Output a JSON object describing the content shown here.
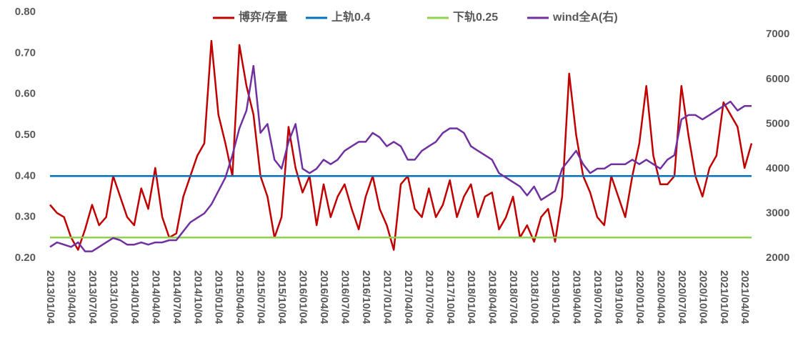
{
  "chart_data": {
    "type": "line",
    "categories": [
      "2013/01/04",
      null,
      null,
      "2013/04/04",
      null,
      null,
      "2013/07/04",
      null,
      null,
      "2013/10/04",
      null,
      null,
      "2014/01/04",
      null,
      null,
      "2014/04/04",
      null,
      null,
      "2014/07/04",
      null,
      null,
      "2014/10/04",
      null,
      null,
      "2015/01/04",
      null,
      null,
      "2015/04/04",
      null,
      null,
      "2015/07/04",
      null,
      null,
      "2015/10/04",
      null,
      null,
      "2016/01/04",
      null,
      null,
      "2016/04/04",
      null,
      null,
      "2016/07/04",
      null,
      null,
      "2016/10/04",
      null,
      null,
      "2017/01/04",
      null,
      null,
      "2017/04/04",
      null,
      null,
      "2017/07/04",
      null,
      null,
      "2017/10/04",
      null,
      null,
      "2018/01/04",
      null,
      null,
      "2018/04/04",
      null,
      null,
      "2018/07/04",
      null,
      null,
      "2018/10/04",
      null,
      null,
      "2019/01/04",
      null,
      null,
      "2019/04/04",
      null,
      null,
      "2019/07/04",
      null,
      null,
      "2019/10/04",
      null,
      null,
      "2020/01/04",
      null,
      null,
      "2020/04/04",
      null,
      null,
      "2020/07/04",
      null,
      null,
      "2020/10/04",
      null,
      null,
      "2021/01/04",
      null,
      null,
      "2021/04/04",
      null
    ],
    "series": [
      {
        "name": "博弈/存量",
        "color": "#c00000",
        "values": [
          0.33,
          0.31,
          0.3,
          0.25,
          0.22,
          0.27,
          0.33,
          0.28,
          0.3,
          0.4,
          0.35,
          0.3,
          0.28,
          0.37,
          0.32,
          0.42,
          0.3,
          0.25,
          0.26,
          0.35,
          0.4,
          0.45,
          0.48,
          0.73,
          0.55,
          0.48,
          0.4,
          0.72,
          0.62,
          0.55,
          0.4,
          0.35,
          0.25,
          0.3,
          0.52,
          0.42,
          0.36,
          0.4,
          0.28,
          0.38,
          0.3,
          0.35,
          0.38,
          0.32,
          0.27,
          0.35,
          0.4,
          0.32,
          0.28,
          0.22,
          0.38,
          0.4,
          0.32,
          0.3,
          0.37,
          0.3,
          0.33,
          0.39,
          0.3,
          0.35,
          0.38,
          0.3,
          0.35,
          0.36,
          0.27,
          0.3,
          0.35,
          0.25,
          0.28,
          0.24,
          0.3,
          0.32,
          0.24,
          0.35,
          0.65,
          0.5,
          0.4,
          0.36,
          0.3,
          0.28,
          0.4,
          0.35,
          0.3,
          0.4,
          0.48,
          0.62,
          0.45,
          0.38,
          0.38,
          0.4,
          0.62,
          0.5,
          0.4,
          0.35,
          0.42,
          0.45,
          0.58,
          0.55,
          0.52,
          0.42,
          0.48
        ]
      },
      {
        "name": "上轨0.4",
        "color": "#0070c0",
        "values": [
          0.4,
          0.4,
          0.4,
          0.4,
          0.4,
          0.4,
          0.4,
          0.4,
          0.4,
          0.4,
          0.4,
          0.4,
          0.4,
          0.4,
          0.4,
          0.4,
          0.4,
          0.4,
          0.4,
          0.4,
          0.4,
          0.4,
          0.4,
          0.4,
          0.4,
          0.4,
          0.4,
          0.4,
          0.4,
          0.4,
          0.4,
          0.4,
          0.4,
          0.4,
          0.4,
          0.4,
          0.4,
          0.4,
          0.4,
          0.4,
          0.4,
          0.4,
          0.4,
          0.4,
          0.4,
          0.4,
          0.4,
          0.4,
          0.4,
          0.4,
          0.4,
          0.4,
          0.4,
          0.4,
          0.4,
          0.4,
          0.4,
          0.4,
          0.4,
          0.4,
          0.4,
          0.4,
          0.4,
          0.4,
          0.4,
          0.4,
          0.4,
          0.4,
          0.4,
          0.4,
          0.4,
          0.4,
          0.4,
          0.4,
          0.4,
          0.4,
          0.4,
          0.4,
          0.4,
          0.4,
          0.4,
          0.4,
          0.4,
          0.4,
          0.4,
          0.4,
          0.4,
          0.4,
          0.4,
          0.4,
          0.4,
          0.4,
          0.4,
          0.4,
          0.4,
          0.4,
          0.4,
          0.4,
          0.4,
          0.4,
          0.4
        ]
      },
      {
        "name": "下轨0.25",
        "color": "#92d050",
        "values": [
          0.25,
          0.25,
          0.25,
          0.25,
          0.25,
          0.25,
          0.25,
          0.25,
          0.25,
          0.25,
          0.25,
          0.25,
          0.25,
          0.25,
          0.25,
          0.25,
          0.25,
          0.25,
          0.25,
          0.25,
          0.25,
          0.25,
          0.25,
          0.25,
          0.25,
          0.25,
          0.25,
          0.25,
          0.25,
          0.25,
          0.25,
          0.25,
          0.25,
          0.25,
          0.25,
          0.25,
          0.25,
          0.25,
          0.25,
          0.25,
          0.25,
          0.25,
          0.25,
          0.25,
          0.25,
          0.25,
          0.25,
          0.25,
          0.25,
          0.25,
          0.25,
          0.25,
          0.25,
          0.25,
          0.25,
          0.25,
          0.25,
          0.25,
          0.25,
          0.25,
          0.25,
          0.25,
          0.25,
          0.25,
          0.25,
          0.25,
          0.25,
          0.25,
          0.25,
          0.25,
          0.25,
          0.25,
          0.25,
          0.25,
          0.25,
          0.25,
          0.25,
          0.25,
          0.25,
          0.25,
          0.25,
          0.25,
          0.25,
          0.25,
          0.25,
          0.25,
          0.25,
          0.25,
          0.25,
          0.25,
          0.25,
          0.25,
          0.25,
          0.25,
          0.25,
          0.25,
          0.25,
          0.25,
          0.25,
          0.25,
          0.25
        ]
      },
      {
        "name": "wind全A(右)",
        "color": "#7030a0",
        "axis": "y2",
        "values": [
          2250,
          2350,
          2300,
          2250,
          2350,
          2150,
          2150,
          2250,
          2350,
          2450,
          2400,
          2300,
          2300,
          2350,
          2300,
          2350,
          2350,
          2400,
          2400,
          2600,
          2800,
          2900,
          3000,
          3200,
          3500,
          3800,
          4300,
          4900,
          5300,
          6300,
          4800,
          5000,
          4200,
          4000,
          4600,
          5000,
          4000,
          3900,
          4000,
          4200,
          4100,
          4200,
          4400,
          4500,
          4600,
          4600,
          4800,
          4700,
          4500,
          4600,
          4500,
          4200,
          4200,
          4400,
          4500,
          4600,
          4800,
          4900,
          4900,
          4800,
          4500,
          4400,
          4300,
          4200,
          3900,
          3800,
          3700,
          3600,
          3400,
          3600,
          3300,
          3400,
          3500,
          4000,
          4200,
          4400,
          4100,
          3900,
          4000,
          4000,
          4100,
          4100,
          4100,
          4200,
          4100,
          4200,
          4100,
          4000,
          4200,
          4300,
          5100,
          5200,
          5200,
          5100,
          5200,
          5300,
          5400,
          5500,
          5300,
          5400,
          5400
        ]
      }
    ],
    "ylim": [
      0.2,
      0.8
    ],
    "yticks": [
      {
        "value": 0.2,
        "label": "0.20"
      },
      {
        "value": 0.3,
        "label": "0.30"
      },
      {
        "value": 0.4,
        "label": "0.40"
      },
      {
        "value": 0.5,
        "label": "0.50"
      },
      {
        "value": 0.6,
        "label": "0.60"
      },
      {
        "value": 0.7,
        "label": "0.70"
      },
      {
        "value": 0.8,
        "label": "0.80"
      }
    ],
    "y2lim": [
      2000,
      7500
    ],
    "y2ticks": [
      2000,
      3000,
      4000,
      5000,
      6000,
      7000
    ],
    "legend": "top"
  }
}
